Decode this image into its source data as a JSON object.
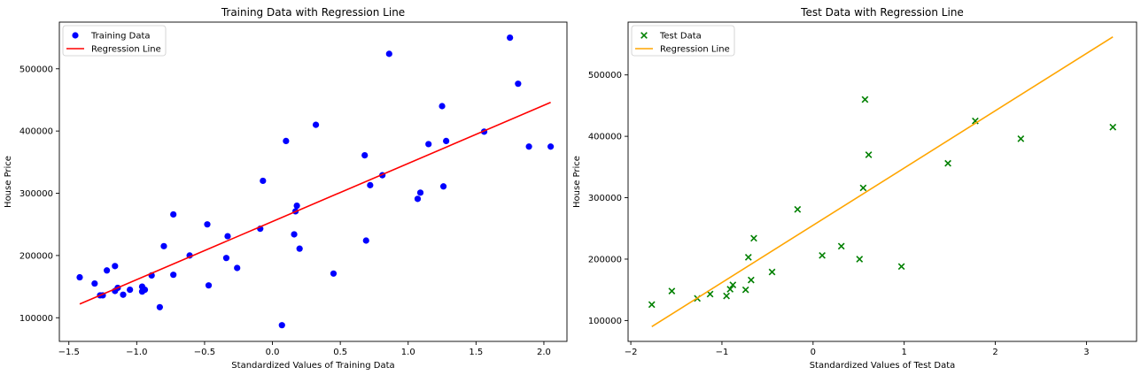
{
  "chart_data": [
    {
      "type": "scatter",
      "title": "Training Data with Regression Line",
      "xlabel": "Standardized Values of Training Data",
      "ylabel": "House Price",
      "xlim": [
        -1.57,
        2.17
      ],
      "ylim": [
        62000,
        575000
      ],
      "xticks": [
        {
          "value": -1.5,
          "label": "−1.5"
        },
        {
          "value": -1.0,
          "label": "−1.0"
        },
        {
          "value": -0.5,
          "label": "−0.5"
        },
        {
          "value": 0.0,
          "label": "0.0"
        },
        {
          "value": 0.5,
          "label": "0.5"
        },
        {
          "value": 1.0,
          "label": "1.0"
        },
        {
          "value": 1.5,
          "label": "1.5"
        },
        {
          "value": 2.0,
          "label": "2.0"
        }
      ],
      "yticks": [
        {
          "value": 100000,
          "label": "100000"
        },
        {
          "value": 200000,
          "label": "200000"
        },
        {
          "value": 300000,
          "label": "300000"
        },
        {
          "value": 400000,
          "label": "400000"
        },
        {
          "value": 500000,
          "label": "500000"
        }
      ],
      "grid": false,
      "legend": "top-left",
      "series": [
        {
          "name": "Training Data",
          "kind": "points",
          "marker": "circle",
          "color": "#0000ff",
          "points": [
            [
              -1.42,
              165000
            ],
            [
              -1.31,
              155000
            ],
            [
              -1.27,
              136000
            ],
            [
              -1.25,
              136000
            ],
            [
              -1.22,
              176000
            ],
            [
              -1.16,
              183000
            ],
            [
              -1.16,
              143000
            ],
            [
              -1.14,
              148000
            ],
            [
              -1.1,
              137000
            ],
            [
              -1.05,
              145000
            ],
            [
              -0.96,
              142000
            ],
            [
              -0.96,
              150000
            ],
            [
              -0.94,
              145000
            ],
            [
              -0.89,
              168000
            ],
            [
              -0.83,
              117000
            ],
            [
              -0.8,
              215000
            ],
            [
              -0.73,
              266000
            ],
            [
              -0.73,
              169000
            ],
            [
              -0.61,
              200000
            ],
            [
              -0.48,
              250000
            ],
            [
              -0.47,
              152000
            ],
            [
              -0.34,
              196000
            ],
            [
              -0.33,
              231000
            ],
            [
              -0.26,
              180000
            ],
            [
              -0.09,
              243000
            ],
            [
              -0.07,
              320000
            ],
            [
              0.07,
              88000
            ],
            [
              0.1,
              384000
            ],
            [
              0.16,
              234000
            ],
            [
              0.17,
              271000
            ],
            [
              0.18,
              280000
            ],
            [
              0.2,
              211000
            ],
            [
              0.32,
              410000
            ],
            [
              0.45,
              171000
            ],
            [
              0.68,
              361000
            ],
            [
              0.69,
              224000
            ],
            [
              0.72,
              313000
            ],
            [
              0.81,
              329000
            ],
            [
              0.86,
              524000
            ],
            [
              1.07,
              291000
            ],
            [
              1.09,
              301000
            ],
            [
              1.15,
              379000
            ],
            [
              1.25,
              440000
            ],
            [
              1.26,
              311000
            ],
            [
              1.28,
              384000
            ],
            [
              1.56,
              399000
            ],
            [
              1.75,
              550000
            ],
            [
              1.81,
              476000
            ],
            [
              1.89,
              375000
            ],
            [
              2.05,
              375000
            ]
          ]
        },
        {
          "name": "Regression Line",
          "kind": "line",
          "color": "#ff0000",
          "points": [
            [
              -1.42,
              122000
            ],
            [
              2.05,
              446000
            ]
          ]
        }
      ]
    },
    {
      "type": "scatter",
      "title": "Test Data with Regression Line",
      "xlabel": "Standardized Values of Test Data",
      "ylabel": "House Price",
      "xlim": [
        -2.03,
        3.55
      ],
      "ylim": [
        66000,
        586000
      ],
      "xticks": [
        {
          "value": -2,
          "label": "−2"
        },
        {
          "value": -1,
          "label": "−1"
        },
        {
          "value": 0,
          "label": "0"
        },
        {
          "value": 1,
          "label": "1"
        },
        {
          "value": 2,
          "label": "2"
        },
        {
          "value": 3,
          "label": "3"
        }
      ],
      "yticks": [
        {
          "value": 100000,
          "label": "100000"
        },
        {
          "value": 200000,
          "label": "200000"
        },
        {
          "value": 300000,
          "label": "300000"
        },
        {
          "value": 400000,
          "label": "400000"
        },
        {
          "value": 500000,
          "label": "500000"
        }
      ],
      "grid": false,
      "legend": "top-left",
      "series": [
        {
          "name": "Test Data",
          "kind": "points",
          "marker": "x",
          "color": "#008000",
          "points": [
            [
              -1.77,
              126000
            ],
            [
              -1.55,
              148000
            ],
            [
              -1.27,
              136000
            ],
            [
              -1.13,
              143000
            ],
            [
              -0.95,
              140000
            ],
            [
              -0.91,
              151000
            ],
            [
              -0.88,
              158000
            ],
            [
              -0.74,
              150000
            ],
            [
              -0.71,
              203000
            ],
            [
              -0.68,
              166000
            ],
            [
              -0.65,
              234000
            ],
            [
              -0.45,
              179000
            ],
            [
              -0.17,
              281000
            ],
            [
              0.1,
              206000
            ],
            [
              0.31,
              221000
            ],
            [
              0.51,
              200000
            ],
            [
              0.55,
              316000
            ],
            [
              0.57,
              460000
            ],
            [
              0.61,
              370000
            ],
            [
              0.97,
              188000
            ],
            [
              1.48,
              356000
            ],
            [
              1.78,
              425000
            ],
            [
              2.28,
              396000
            ],
            [
              3.29,
              415000
            ]
          ]
        },
        {
          "name": "Regression Line",
          "kind": "line",
          "color": "#ffa500",
          "points": [
            [
              -1.77,
              90000
            ],
            [
              3.29,
              562000
            ]
          ]
        }
      ]
    }
  ]
}
